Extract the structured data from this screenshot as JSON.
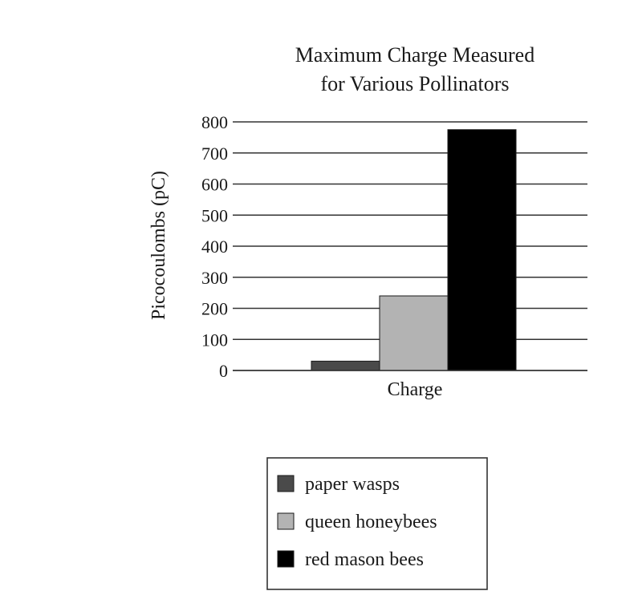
{
  "chart_data": {
    "type": "bar",
    "title": [
      "Maximum Charge Measured",
      "for Various Pollinators"
    ],
    "xlabel": "Charge",
    "ylabel": "Picocoulombs (pC)",
    "categories": [
      "Charge"
    ],
    "ylim": [
      0,
      800
    ],
    "yticks": [
      "800",
      "700",
      "600",
      "500",
      "400",
      "300",
      "200",
      "100",
      "0"
    ],
    "grid": true,
    "legend_position": "bottom",
    "series": [
      {
        "name": "paper wasps",
        "values": [
          30
        ],
        "color": "#4a4a4a"
      },
      {
        "name": "queen honeybees",
        "values": [
          240
        ],
        "color": "#b3b3b3"
      },
      {
        "name": "red mason bees",
        "values": [
          775
        ],
        "color": "#000000"
      }
    ]
  }
}
